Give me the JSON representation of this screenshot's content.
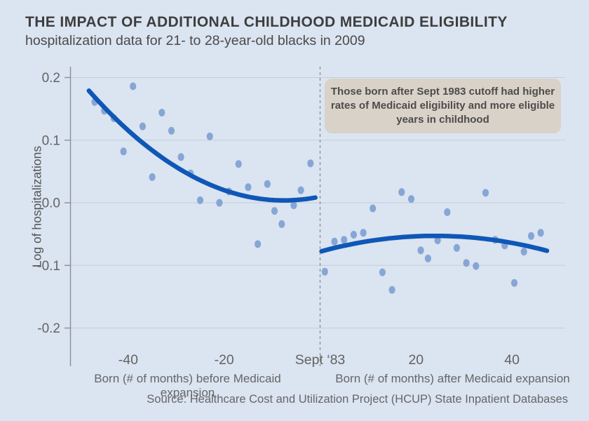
{
  "chart_data": {
    "type": "scatter",
    "title": "THE IMPACT OF ADDITIONAL CHILDHOOD MEDICAID ELIGIBILITY",
    "subtitle": "hospitalization data for 21- to 28-year-old blacks in 2009",
    "ylabel": "Log of hospitalizations",
    "xlabel_before": "Born (# of months) before Medicaid expansion",
    "xlabel_after": "Born (# of months) after Medicaid expansion",
    "source": "Source: Healthcare Cost and Utilization Project (HCUP) State Inpatient Databases",
    "annotation_lines": [
      "Those born after Sept 1983 cutoff had higher",
      "rates of Medicaid eligibility and more eligible",
      "years in childhood"
    ],
    "grid": true,
    "legend": "none",
    "xlim": [
      -52,
      50
    ],
    "ylim": [
      -0.2,
      0.2
    ],
    "x_unit": "months relative to Sept 1983 cutoff",
    "cutoff": {
      "m": 0,
      "label": "Sept ‘83"
    },
    "x_ticks": [
      {
        "m": -40,
        "label": "-40"
      },
      {
        "m": -20,
        "label": "-20"
      },
      {
        "m": 20,
        "label": "20"
      },
      {
        "m": 40,
        "label": "40"
      }
    ],
    "y_ticks": [
      {
        "v": 0.2,
        "label": "0.2"
      },
      {
        "v": 0.1,
        "label": "0.1"
      },
      {
        "v": 0.0,
        "label": "0.0"
      },
      {
        "v": -0.1,
        "label": "-0.1"
      },
      {
        "v": -0.2,
        "label": "-0.2"
      }
    ],
    "series": [
      {
        "name": "scatter-before-cutoff",
        "type": "scatter",
        "points": [
          [
            -47,
            0.161
          ],
          [
            -45,
            0.147
          ],
          [
            -43,
            0.135
          ],
          [
            -41,
            0.082
          ],
          [
            -39,
            0.186
          ],
          [
            -37,
            0.122
          ],
          [
            -35,
            0.041
          ],
          [
            -33,
            0.144
          ],
          [
            -31,
            0.115
          ],
          [
            -29,
            0.073
          ],
          [
            -27,
            0.047
          ],
          [
            -25,
            0.004
          ],
          [
            -23,
            0.106
          ],
          [
            -21,
            0.0
          ],
          [
            -19,
            0.018
          ],
          [
            -17,
            0.062
          ],
          [
            -15,
            0.025
          ],
          [
            -13,
            -0.066
          ],
          [
            -11,
            0.03
          ],
          [
            -9.5,
            -0.013
          ],
          [
            -8,
            -0.034
          ],
          [
            -5.5,
            -0.004
          ],
          [
            -4,
            0.02
          ],
          [
            -2,
            0.063
          ]
        ]
      },
      {
        "name": "scatter-after-cutoff",
        "type": "scatter",
        "points": [
          [
            1,
            -0.11
          ],
          [
            3,
            -0.062
          ],
          [
            5,
            -0.059
          ],
          [
            7,
            -0.051
          ],
          [
            9,
            -0.048
          ],
          [
            11,
            -0.009
          ],
          [
            13,
            -0.111
          ],
          [
            15,
            -0.139
          ],
          [
            17,
            0.017
          ],
          [
            19,
            0.006
          ],
          [
            21,
            -0.076
          ],
          [
            22.5,
            -0.089
          ],
          [
            24.5,
            -0.06
          ],
          [
            26.5,
            -0.015
          ],
          [
            28.5,
            -0.072
          ],
          [
            30.5,
            -0.096
          ],
          [
            32.5,
            -0.101
          ],
          [
            34.5,
            0.016
          ],
          [
            36.5,
            -0.059
          ],
          [
            38.5,
            -0.068
          ],
          [
            40.5,
            -0.128
          ],
          [
            42.5,
            -0.078
          ],
          [
            44,
            -0.053
          ],
          [
            46,
            -0.048
          ]
        ]
      },
      {
        "name": "fit-curve-before",
        "type": "fit",
        "poly": [
          0.0098,
          0.0016,
          0.000106
        ],
        "x_range": [
          -48.2,
          -1.0
        ]
      },
      {
        "name": "fit-curve-after",
        "type": "fit",
        "poly": [
          -0.078,
          0.0021,
          -4.38e-05
        ],
        "x_range": [
          0.3,
          47.3
        ]
      }
    ],
    "colors": {
      "background": "#dbe4f1",
      "grid": "#c5cdda",
      "axis": "#8a8f96",
      "tick_text": "#636363",
      "point": "#7fa1d3",
      "curve": "#0f57b7",
      "annotation_bg": "#d9d2c8",
      "annotation_text": "#4c4c4c",
      "title_text": "#3e3e3e"
    }
  }
}
